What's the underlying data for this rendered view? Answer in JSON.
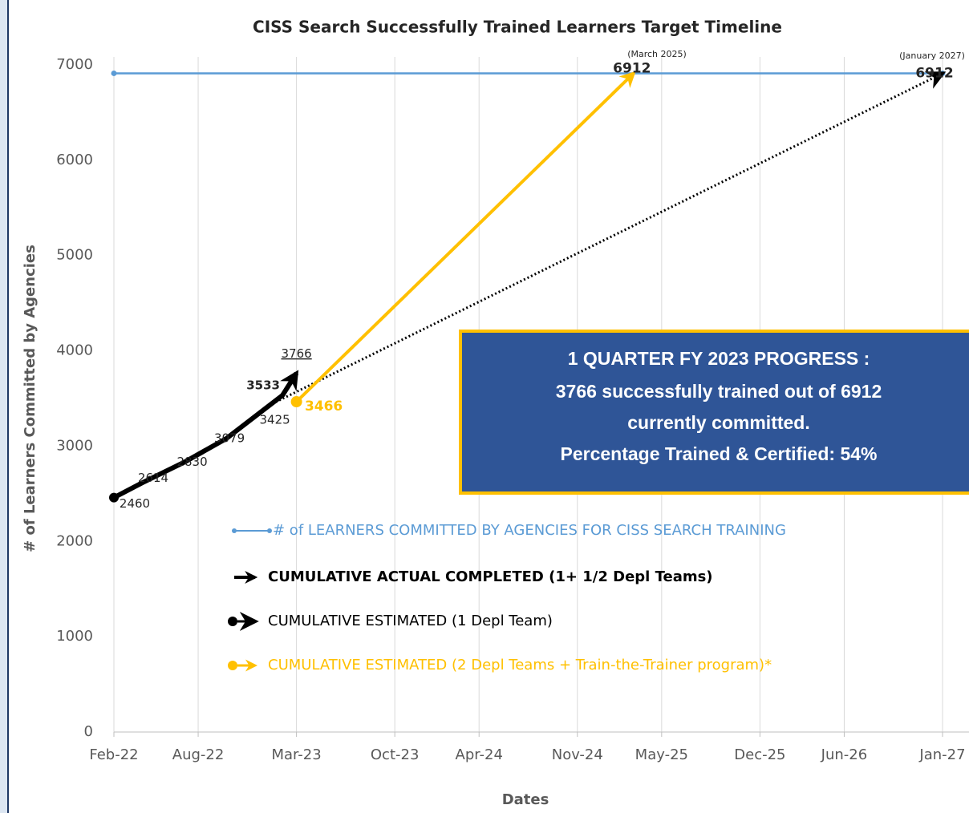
{
  "chart_data": {
    "type": "line",
    "title": "CISS Search Successfully Trained Learners Target Timeline",
    "x_label": "Dates",
    "y_label": "# of Learners Committed by Agencies",
    "xlim": [
      "2022-02",
      "2027-01"
    ],
    "xticks": [
      {
        "value": "2022-02",
        "label": "Feb-22"
      },
      {
        "value": "2022-08",
        "label": "Aug-22"
      },
      {
        "value": "2023-03",
        "label": "Mar-23"
      },
      {
        "value": "2023-10",
        "label": "Oct-23"
      },
      {
        "value": "2024-04",
        "label": "Apr-24"
      },
      {
        "value": "2024-11",
        "label": "Nov-24"
      },
      {
        "value": "2025-05",
        "label": "May-25"
      },
      {
        "value": "2025-12",
        "label": "Dec-25"
      },
      {
        "value": "2026-06",
        "label": "Jun-26"
      },
      {
        "value": "2027-01",
        "label": "Jan-27"
      }
    ],
    "ylim": [
      0,
      7000
    ],
    "yticks": [
      0,
      1000,
      2000,
      3000,
      4000,
      5000,
      6000,
      7000
    ],
    "grid": "x",
    "series": [
      {
        "name": "# of LEARNERS COMMITTED BY AGENCIES FOR CISS SEARCH TRAINING",
        "color": "#5b9bd5",
        "style": "line-dots",
        "data_labels": false,
        "x": [
          "2022-02",
          "2027-01"
        ],
        "values": [
          6912,
          6912
        ]
      },
      {
        "name": "CUMULATIVE ACTUAL COMPLETED (1+ 1/2 Depl Teams)",
        "color": "#000000",
        "style": "arrow",
        "data_labels": true,
        "x": [
          "2022-02",
          "2022-04",
          "2022-07",
          "2022-10",
          "2023-02",
          "2023-03"
        ],
        "values": [
          2460,
          2614,
          2830,
          3079,
          3533,
          3766
        ]
      },
      {
        "name": "CUMULATIVE ESTIMATED (1 Depl Team)",
        "color": "#000000",
        "style": "dotted-arrow",
        "data_labels": true,
        "x": [
          "2023-01",
          "2027-01"
        ],
        "values": [
          3425,
          6912
        ]
      },
      {
        "name": "CUMULATIVE ESTIMATED (2 Depl Teams + Train-the-Trainer program)*",
        "color": "#ffc000",
        "style": "dot-arrow",
        "data_labels": true,
        "x": [
          "2023-03",
          "2025-03"
        ],
        "values": [
          3466,
          6912
        ]
      }
    ],
    "annotations": [
      "(March 2025)",
      "(January 2027)"
    ],
    "callout": [
      "1 QUARTER FY 2023 PROGRESS :",
      "3766 successfully trained out of 6912",
      "currently  committed.",
      "Percentage Trained & Certified:  54%"
    ]
  }
}
